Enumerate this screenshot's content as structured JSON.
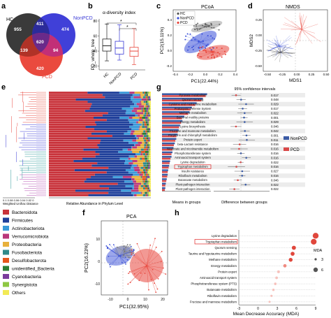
{
  "panels": {
    "a": {
      "label": "a",
      "sets": [
        {
          "name": "HC",
          "color": "#333333"
        },
        {
          "name": "NonPCD",
          "color": "#3a3ad6"
        },
        {
          "name": "PCD",
          "color": "#e8463c"
        }
      ],
      "counts": {
        "hc_only": "955",
        "nonpcd_only": "474",
        "pcd_only": "420",
        "hc_nonpcd": "411",
        "hc_pcd": "139",
        "nonpcd_pcd": "94",
        "all": "620"
      }
    },
    "b": {
      "label": "b",
      "title": "α-diversity index",
      "ylabel": "PD_whole_tree",
      "yticks": [
        "20",
        "40",
        "60",
        "80"
      ],
      "sig": [
        "*",
        "*"
      ]
    },
    "c": {
      "label": "c",
      "title": "PCoA",
      "xlabel": "PC1(22.44%)",
      "ylabel": "PC2(15.11%)",
      "legend": [
        "HC",
        "NonPCD",
        "PCD"
      ],
      "xticks": [
        "-0.4",
        "-0.2",
        "0.0",
        "0.2",
        "0.4"
      ],
      "yticks": [
        "-0.2",
        "0.0",
        "0.2",
        "0.4"
      ]
    },
    "d": {
      "label": "d",
      "title": "NMDS",
      "xlabel": "MDS1",
      "ylabel": "MDS2",
      "xticks": [
        "-0.50",
        "-0.25",
        "0.00",
        "0.25",
        "0.50"
      ],
      "yticks": [
        "-0.50",
        "-0.25",
        "0.00",
        "0.25"
      ]
    },
    "e": {
      "label": "e",
      "xlabel_left": "Weighted Unifrac Distance",
      "xlabel_right": "Relative Abundance in Phylum Level",
      "dist_ticks": "0.1 0.08 0.06 0.04 0.02 0",
      "legend": [
        {
          "name": "Bacteroidota",
          "color": "#c8323a"
        },
        {
          "name": "Firmicutes",
          "color": "#1f3f9a"
        },
        {
          "name": "Actinobacteriota",
          "color": "#3a9ad9"
        },
        {
          "name": "Verrucomicrobiota",
          "color": "#b9377a"
        },
        {
          "name": "Proteobacteria",
          "color": "#e8b13c"
        },
        {
          "name": "Fusobacteriota",
          "color": "#2f8a8a"
        },
        {
          "name": "Desulfobacterota",
          "color": "#e6561c"
        },
        {
          "name": "unidentified_Bacteria",
          "color": "#2c7d34"
        },
        {
          "name": "Cyanobacteria",
          "color": "#7b3c9c"
        },
        {
          "name": "Synergistota",
          "color": "#8ec742"
        },
        {
          "name": "Others",
          "color": "#f2ea55"
        }
      ]
    },
    "f": {
      "label": "f",
      "title": "PCA",
      "xlabel": "PC1(32.95%)",
      "ylabel": "PC2(16.23%)",
      "xticks": [
        "-10",
        "0",
        "10",
        "20"
      ],
      "yticks": [
        "-10",
        "0",
        "10"
      ]
    },
    "g": {
      "label": "g",
      "ci_title": "95% confidence intervals",
      "xlabel_left": "Means in groups",
      "xlabel_right": "Difference between groups",
      "highlight": "Tryptophan metabolism",
      "legend": [
        {
          "name": "NonPCD",
          "color": "#3b5ba5"
        },
        {
          "name": "PCD",
          "color": "#d94848"
        }
      ]
    },
    "h": {
      "label": "h",
      "xlabel": "Mean Decrease Accuracy (MDA)",
      "highlight": "Tryptophan metabolism",
      "legend_title": "MDA",
      "legend_values": [
        "3",
        "6"
      ],
      "xticks": [
        "-3",
        "0",
        "3",
        "6",
        "9"
      ]
    }
  },
  "chart_data": [
    {
      "type": "bar",
      "panel": "g",
      "categories": [
        "Pyruvate metabolism",
        "Quorum sensing",
        "Cysteine and methionine metabolism",
        "Prokaryotic Defense System",
        "Methane metabolism",
        "Bacterial motility proteins",
        "Energy metabolism",
        "Lysine biosynthesis",
        "Fructose and mannose metabolism",
        "Porphyrin and chlorophyll metabolism",
        "Protein export",
        "beta-Lactam resistance",
        "Nicotinate and nicotinamide metabolism",
        "Phosphotransferase system",
        "Aminoacid transport system",
        "Lysine degradation",
        "Tryptophan metabolism",
        "Insulin resistance",
        "Riboflavin metabolism",
        "Butanoate metabolism",
        "Plant-pathogen interaction",
        "Plant-pathogen interaction"
      ],
      "p_values": [
        "0.017",
        "0.048",
        "0.029",
        "0.017",
        "0.022",
        "0.001",
        "0.029",
        "0.046",
        "0.042",
        "0.001",
        "0.011",
        "0.016",
        "0.016",
        "0.016",
        "0.016",
        "0.022",
        "0.016",
        "0.027",
        "0.016",
        "0.046",
        "0.022",
        "0.022"
      ],
      "series": [
        {
          "name": "NonPCD",
          "values": [
            0.95,
            0.86,
            0.73,
            0.63,
            0.58,
            0.47,
            0.43,
            0.38,
            0.35,
            0.33,
            0.3,
            0.27,
            0.24,
            0.22,
            0.2,
            0.17,
            0.15,
            0.13,
            0.12,
            0.1,
            0.08,
            0.07
          ]
        },
        {
          "name": "PCD",
          "values": [
            0.92,
            0.83,
            0.7,
            0.6,
            0.55,
            0.42,
            0.4,
            0.36,
            0.33,
            0.3,
            0.28,
            0.25,
            0.22,
            0.2,
            0.18,
            0.16,
            0.14,
            0.12,
            0.11,
            0.09,
            0.07,
            0.06
          ]
        }
      ]
    },
    {
      "type": "scatter",
      "panel": "h",
      "categories": [
        "Lysine degradation",
        "Tryptophan metabolism",
        "Quorum sensing",
        "Taurine and hypotaurine metabolism",
        "Methane metabolism",
        "Energy metabolism",
        "Protein export",
        "Aminoacid transport system",
        "Phosphotransferase system (PTS)",
        "Butanoate metabolism",
        "Riboflavin metabolism",
        "Fructose and mannose metabolism"
      ],
      "values": [
        9.0,
        8.7,
        5.6,
        5.4,
        5.1,
        4.2,
        3.2,
        2.9,
        2.7,
        2.4,
        2.1,
        1.8
      ],
      "xlim": [
        -3,
        9
      ]
    },
    {
      "type": "box",
      "panel": "b",
      "categories": [
        "HC",
        "NonPCD",
        "PCD"
      ],
      "series": [
        {
          "name": "HC",
          "min": 27,
          "q1": 40,
          "median": 47,
          "q3": 56,
          "max": 76
        },
        {
          "name": "NonPCD",
          "min": 28,
          "q1": 36,
          "median": 44,
          "q3": 53,
          "max": 75
        },
        {
          "name": "PCD",
          "min": 22,
          "q1": 33,
          "median": 40,
          "q3": 45,
          "max": 70
        }
      ]
    }
  ]
}
